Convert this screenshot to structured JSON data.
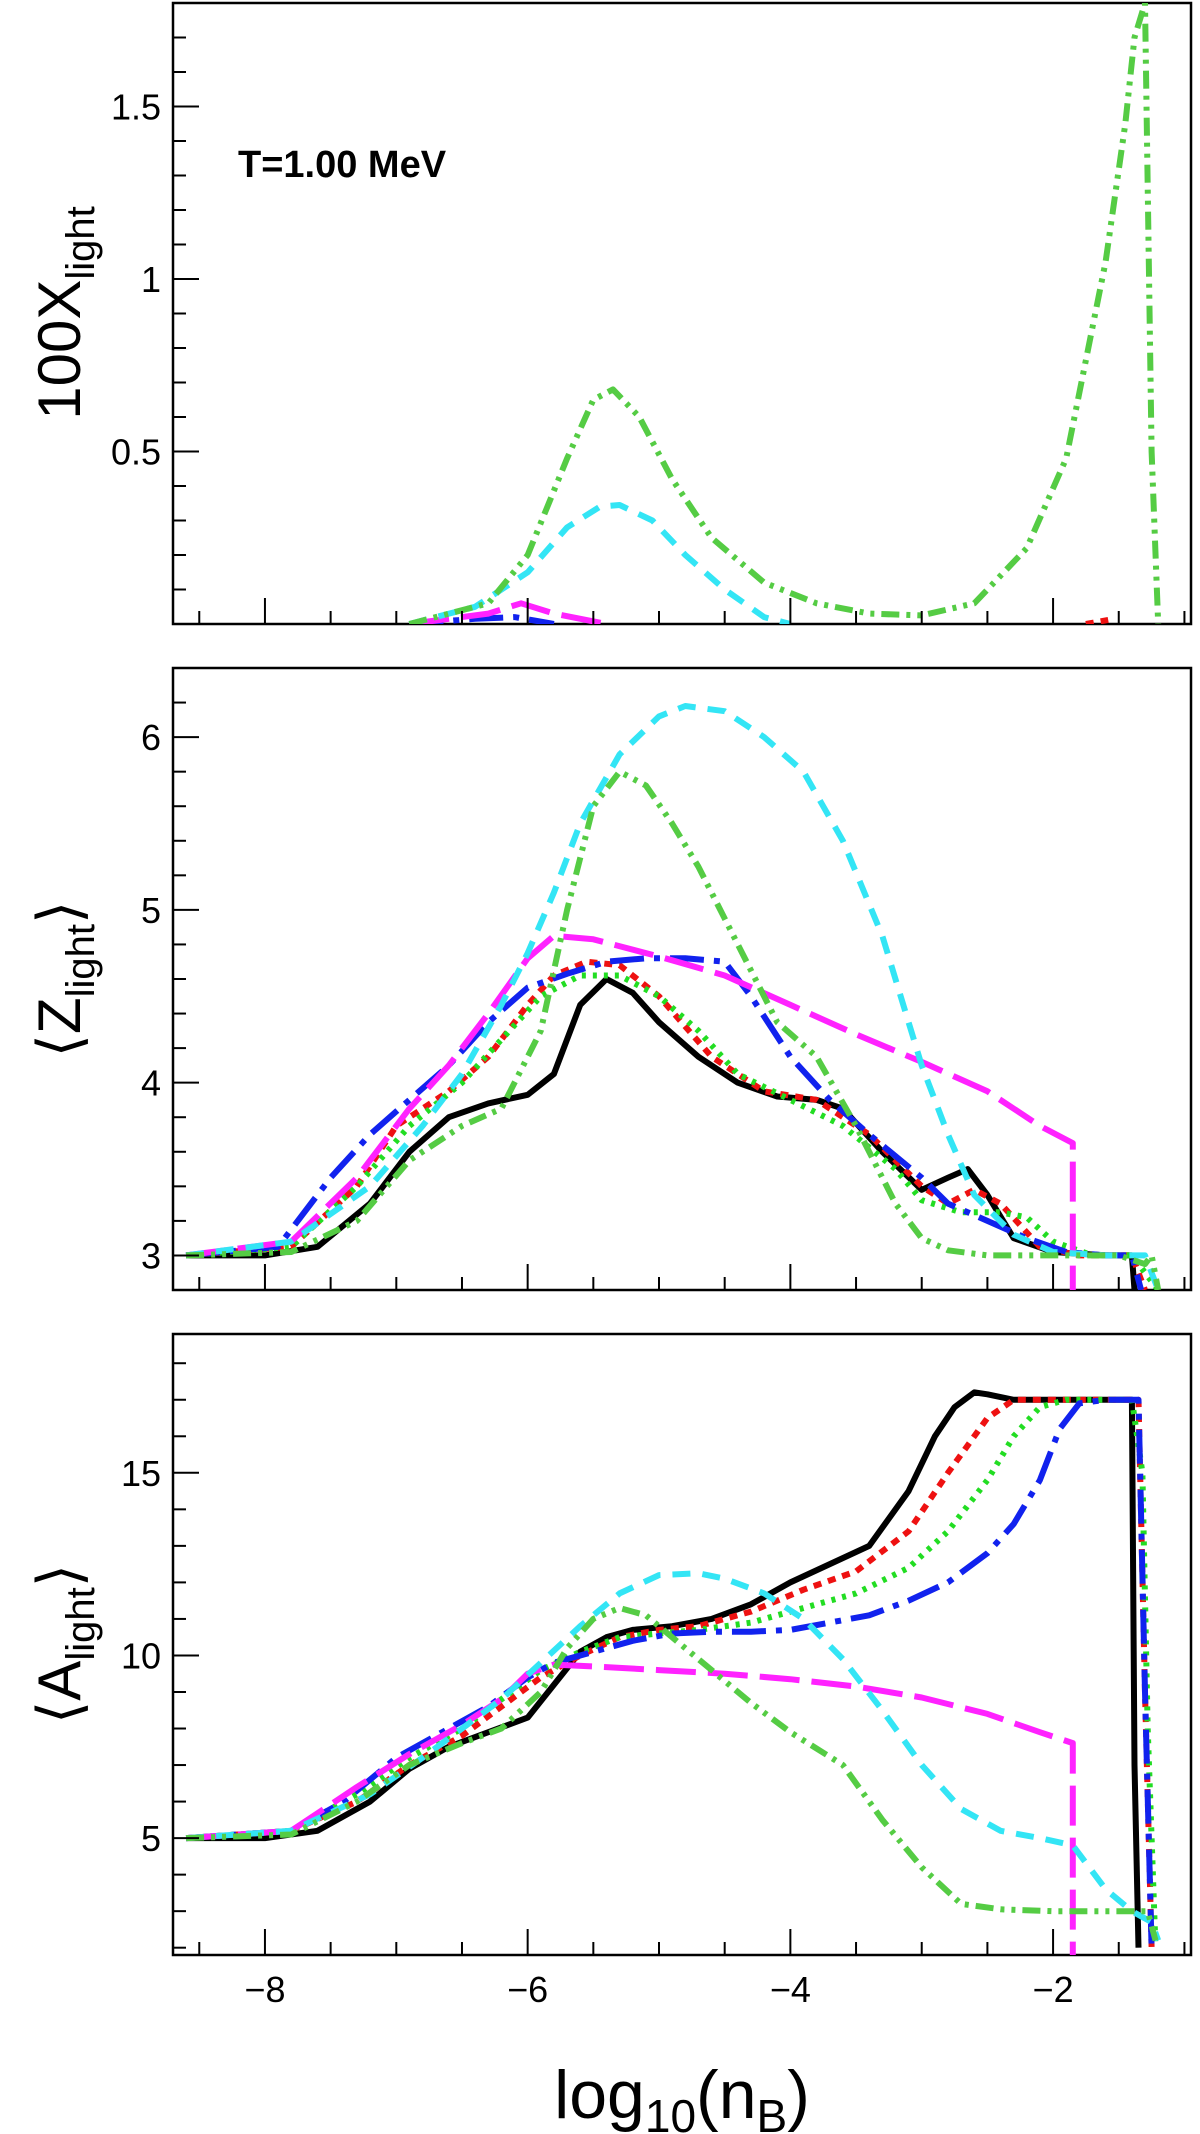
{
  "annotation": "T=1.00 MeV",
  "xaxis": {
    "label_main": "log",
    "label_sub": "10",
    "label_open": "(n",
    "label_var_sub": "B",
    "label_close": ")",
    "range": [
      -8.7,
      -0.95
    ],
    "major_ticks": [
      -8,
      -6,
      -4,
      -2
    ],
    "tick_labels": [
      "−8",
      "−6",
      "−4",
      "−2"
    ]
  },
  "colors": {
    "black": "#000000",
    "red": "#ee1111",
    "green": "#22dd22",
    "blue": "#1122ee",
    "magenta": "#ff22ff",
    "cyan": "#33e5f5",
    "lightgreen": "#55cc44"
  },
  "chart_data": [
    {
      "type": "line",
      "id": "X",
      "title": "T=1.00 MeV",
      "ylabel_main": "100X",
      "ylabel_sub": "light",
      "xlabel": "log10(nB)",
      "ylim": [
        0,
        1.8
      ],
      "yticks": [
        0.5,
        1,
        1.5
      ],
      "ytick_labels": [
        "0.5",
        "1",
        "1.5"
      ],
      "series": [
        {
          "name": "blue-dashdot",
          "color": "blue",
          "dash": "34,10,6,10",
          "width": 6,
          "x": [
            -6.9,
            -6.4,
            -6.1,
            -5.95,
            -5.8
          ],
          "y": [
            0.0,
            0.015,
            0.02,
            0.01,
            0.0
          ]
        },
        {
          "name": "magenta-longdash",
          "color": "magenta",
          "dash": "40,12",
          "width": 6,
          "x": [
            -6.9,
            -6.3,
            -6.05,
            -5.8,
            -5.4
          ],
          "y": [
            0.0,
            0.03,
            0.06,
            0.03,
            0.0
          ]
        },
        {
          "name": "cyan-dashed",
          "color": "cyan",
          "dash": "18,12",
          "width": 6,
          "x": [
            -6.9,
            -6.4,
            -6.0,
            -5.7,
            -5.45,
            -5.3,
            -5.05,
            -4.8,
            -4.5,
            -4.2,
            -4.0
          ],
          "y": [
            0.0,
            0.05,
            0.15,
            0.28,
            0.34,
            0.345,
            0.3,
            0.2,
            0.1,
            0.02,
            0.0
          ]
        },
        {
          "name": "green-dashdotdot",
          "color": "lightgreen",
          "dash": "18,7,4,7,4,7",
          "width": 6,
          "x": [
            -6.9,
            -6.3,
            -6.0,
            -5.7,
            -5.5,
            -5.35,
            -5.15,
            -4.9,
            -4.6,
            -4.2,
            -3.8,
            -3.4,
            -3.0,
            -2.6,
            -2.2,
            -1.9,
            -1.6,
            -1.45,
            -1.38,
            -1.3,
            -1.25,
            -1.2
          ],
          "y": [
            0.0,
            0.06,
            0.2,
            0.48,
            0.65,
            0.68,
            0.6,
            0.42,
            0.25,
            0.12,
            0.06,
            0.03,
            0.025,
            0.06,
            0.22,
            0.48,
            1.05,
            1.45,
            1.7,
            1.8,
            0.5,
            0.0
          ]
        },
        {
          "name": "red-dotted",
          "color": "red",
          "dash": "8,7",
          "width": 6,
          "x": [
            -1.75,
            -1.58
          ],
          "y": [
            0.0,
            0.012
          ]
        }
      ]
    },
    {
      "type": "line",
      "id": "Z",
      "ylabel_main": "Z",
      "ylabel_sub": "light",
      "ylim": [
        2.8,
        6.4
      ],
      "yticks": [
        3,
        4,
        5,
        6
      ],
      "ytick_labels": [
        "3",
        "4",
        "5",
        "6"
      ],
      "series": [
        {
          "name": "black-solid",
          "color": "black",
          "dash": "",
          "width": 6,
          "x": [
            -8.6,
            -8.0,
            -7.6,
            -7.2,
            -6.9,
            -6.6,
            -6.3,
            -6.0,
            -5.8,
            -5.6,
            -5.4,
            -5.2,
            -5.0,
            -4.7,
            -4.4,
            -4.1,
            -3.8,
            -3.6,
            -3.3,
            -3.0,
            -2.8,
            -2.65,
            -2.5,
            -2.3,
            -2.0,
            -1.6,
            -1.4,
            -1.38
          ],
          "y": [
            3.0,
            3.0,
            3.05,
            3.3,
            3.6,
            3.8,
            3.88,
            3.93,
            4.05,
            4.45,
            4.6,
            4.52,
            4.35,
            4.15,
            4.0,
            3.92,
            3.9,
            3.85,
            3.6,
            3.38,
            3.45,
            3.5,
            3.35,
            3.1,
            3.02,
            3.0,
            3.0,
            2.8
          ]
        },
        {
          "name": "red-dotted",
          "color": "red",
          "dash": "8,7",
          "width": 6,
          "x": [
            -8.6,
            -7.8,
            -7.3,
            -7.0,
            -6.6,
            -6.3,
            -6.0,
            -5.8,
            -5.55,
            -5.3,
            -5.0,
            -4.6,
            -4.2,
            -3.8,
            -3.4,
            -3.0,
            -2.8,
            -2.6,
            -2.4,
            -2.1,
            -1.8,
            -1.4,
            -1.3
          ],
          "y": [
            3.0,
            3.05,
            3.4,
            3.75,
            3.95,
            4.15,
            4.45,
            4.62,
            4.7,
            4.68,
            4.5,
            4.15,
            3.95,
            3.9,
            3.7,
            3.4,
            3.3,
            3.38,
            3.3,
            3.05,
            3.0,
            3.0,
            2.8
          ]
        },
        {
          "name": "green-dotted",
          "color": "green",
          "dash": "4,7",
          "width": 6,
          "x": [
            -8.6,
            -7.8,
            -7.3,
            -6.9,
            -6.5,
            -6.2,
            -5.9,
            -5.6,
            -5.3,
            -5.0,
            -4.7,
            -4.4,
            -4.0,
            -3.6,
            -3.2,
            -3.0,
            -2.7,
            -2.4,
            -2.2,
            -2.0,
            -1.7,
            -1.4,
            -1.2
          ],
          "y": [
            3.0,
            3.05,
            3.4,
            3.75,
            4.0,
            4.25,
            4.5,
            4.62,
            4.62,
            4.5,
            4.3,
            4.05,
            3.9,
            3.75,
            3.5,
            3.32,
            3.25,
            3.25,
            3.22,
            3.08,
            3.0,
            3.0,
            2.8
          ]
        },
        {
          "name": "blue-dashdot",
          "color": "blue",
          "dash": "34,10,6,10",
          "width": 6,
          "x": [
            -8.6,
            -7.9,
            -7.5,
            -7.2,
            -6.9,
            -6.6,
            -6.3,
            -6.0,
            -5.7,
            -5.4,
            -5.1,
            -4.8,
            -4.5,
            -4.3,
            -4.0,
            -3.7,
            -3.4,
            -3.0,
            -2.8,
            -2.5,
            -2.2,
            -1.9,
            -1.6,
            -1.4,
            -1.33
          ],
          "y": [
            3.0,
            3.05,
            3.45,
            3.7,
            3.9,
            4.1,
            4.35,
            4.55,
            4.63,
            4.7,
            4.72,
            4.72,
            4.7,
            4.5,
            4.15,
            3.9,
            3.7,
            3.45,
            3.3,
            3.2,
            3.1,
            3.02,
            3.0,
            3.0,
            2.8
          ]
        },
        {
          "name": "magenta-longdash",
          "color": "magenta",
          "dash": "40,12",
          "width": 6,
          "x": [
            -8.6,
            -7.8,
            -7.3,
            -6.9,
            -6.6,
            -6.3,
            -6.0,
            -5.8,
            -5.5,
            -5.0,
            -4.5,
            -4.0,
            -3.5,
            -3.0,
            -2.5,
            -2.1,
            -1.85,
            -1.85
          ],
          "y": [
            3.0,
            3.08,
            3.45,
            3.85,
            4.1,
            4.4,
            4.72,
            4.85,
            4.83,
            4.73,
            4.62,
            4.45,
            4.28,
            4.12,
            3.95,
            3.75,
            3.65,
            2.8
          ]
        },
        {
          "name": "cyan-dashed",
          "color": "cyan",
          "dash": "18,12",
          "width": 6,
          "x": [
            -8.6,
            -7.8,
            -7.2,
            -6.8,
            -6.5,
            -6.2,
            -6.0,
            -5.8,
            -5.6,
            -5.3,
            -5.0,
            -4.8,
            -4.5,
            -4.2,
            -3.9,
            -3.6,
            -3.3,
            -3.0,
            -2.8,
            -2.6,
            -2.3,
            -2.0,
            -1.6,
            -1.3,
            -1.2
          ],
          "y": [
            3.0,
            3.08,
            3.4,
            3.75,
            4.05,
            4.45,
            4.75,
            5.1,
            5.5,
            5.9,
            6.12,
            6.18,
            6.15,
            6.0,
            5.8,
            5.4,
            4.85,
            4.1,
            3.7,
            3.35,
            3.12,
            3.02,
            3.0,
            3.0,
            2.8
          ]
        },
        {
          "name": "green-dashdotdot",
          "color": "lightgreen",
          "dash": "18,7,4,7,4,7",
          "width": 6,
          "x": [
            -8.6,
            -7.8,
            -7.3,
            -6.9,
            -6.5,
            -6.2,
            -5.9,
            -5.7,
            -5.5,
            -5.3,
            -5.1,
            -4.9,
            -4.7,
            -4.4,
            -4.1,
            -3.8,
            -3.5,
            -3.2,
            -3.0,
            -2.8,
            -2.5,
            -2.2,
            -2.0,
            -1.8,
            -1.5,
            -1.3,
            -1.25,
            -1.2
          ],
          "y": [
            3.0,
            3.02,
            3.2,
            3.55,
            3.75,
            3.85,
            4.3,
            5.0,
            5.6,
            5.8,
            5.72,
            5.5,
            5.25,
            4.8,
            4.35,
            4.15,
            3.75,
            3.3,
            3.1,
            3.03,
            3.0,
            3.0,
            3.0,
            3.0,
            3.0,
            2.95,
            3.0,
            2.8
          ]
        }
      ]
    },
    {
      "type": "line",
      "id": "A",
      "ylabel_main": "A",
      "ylabel_sub": "light",
      "ylim": [
        1.8,
        18.8
      ],
      "yticks": [
        5,
        10,
        15
      ],
      "ytick_labels": [
        "5",
        "10",
        "15"
      ],
      "series": [
        {
          "name": "black-solid",
          "color": "black",
          "dash": "",
          "width": 6,
          "x": [
            -8.6,
            -8.0,
            -7.6,
            -7.2,
            -6.9,
            -6.6,
            -6.3,
            -6.0,
            -5.8,
            -5.6,
            -5.4,
            -5.2,
            -4.9,
            -4.6,
            -4.3,
            -4.0,
            -3.7,
            -3.4,
            -3.1,
            -2.9,
            -2.75,
            -2.6,
            -2.5,
            -2.3,
            -2.0,
            -1.7,
            -1.4,
            -1.38,
            -1.35
          ],
          "y": [
            5.0,
            5.0,
            5.2,
            6.0,
            6.9,
            7.5,
            7.9,
            8.3,
            9.2,
            10.1,
            10.5,
            10.7,
            10.8,
            11.0,
            11.4,
            12.0,
            12.5,
            13.0,
            14.5,
            16.0,
            16.8,
            17.2,
            17.15,
            17.0,
            17.0,
            17.0,
            17.0,
            7.0,
            2.0
          ]
        },
        {
          "name": "red-dotted",
          "color": "red",
          "dash": "8,7",
          "width": 6,
          "x": [
            -8.6,
            -7.8,
            -7.3,
            -6.9,
            -6.5,
            -6.2,
            -5.9,
            -5.6,
            -5.3,
            -5.0,
            -4.7,
            -4.3,
            -3.9,
            -3.5,
            -3.1,
            -2.8,
            -2.5,
            -2.3,
            -2.0,
            -1.6,
            -1.35,
            -1.3,
            -1.25
          ],
          "y": [
            5.0,
            5.2,
            6.0,
            7.0,
            7.8,
            8.6,
            9.4,
            10.0,
            10.5,
            10.7,
            10.8,
            11.2,
            11.8,
            12.3,
            13.4,
            15.0,
            16.5,
            17.0,
            17.0,
            17.0,
            17.0,
            9.0,
            2.0
          ]
        },
        {
          "name": "green-dotted",
          "color": "green",
          "dash": "4,7",
          "width": 6,
          "x": [
            -8.6,
            -7.8,
            -7.3,
            -6.9,
            -6.5,
            -6.2,
            -5.9,
            -5.6,
            -5.3,
            -5.0,
            -4.7,
            -4.3,
            -3.9,
            -3.5,
            -3.1,
            -2.8,
            -2.5,
            -2.3,
            -2.1,
            -1.9,
            -1.6,
            -1.4,
            -1.32,
            -1.28,
            -1.22
          ],
          "y": [
            5.0,
            5.2,
            6.2,
            7.2,
            8.0,
            8.8,
            9.6,
            10.1,
            10.5,
            10.6,
            10.7,
            10.9,
            11.3,
            11.7,
            12.4,
            13.4,
            14.8,
            16.0,
            16.8,
            17.0,
            17.0,
            17.0,
            15.0,
            8.0,
            2.0
          ]
        },
        {
          "name": "blue-dashdot",
          "color": "blue",
          "dash": "34,10,6,10",
          "width": 6,
          "x": [
            -8.6,
            -7.8,
            -7.4,
            -7.0,
            -6.6,
            -6.3,
            -6.0,
            -5.8,
            -5.5,
            -5.2,
            -4.9,
            -4.6,
            -4.3,
            -4.0,
            -3.7,
            -3.4,
            -3.1,
            -2.8,
            -2.5,
            -2.3,
            -2.1,
            -1.95,
            -1.8,
            -1.6,
            -1.4,
            -1.35,
            -1.3,
            -1.25
          ],
          "y": [
            5.0,
            5.2,
            6.0,
            7.2,
            8.0,
            8.6,
            9.4,
            9.8,
            10.1,
            10.4,
            10.6,
            10.65,
            10.65,
            10.7,
            10.9,
            11.1,
            11.5,
            12.0,
            12.8,
            13.6,
            14.8,
            16.2,
            16.9,
            17.0,
            17.0,
            17.0,
            9.0,
            2.0
          ]
        },
        {
          "name": "magenta-longdash",
          "color": "magenta",
          "dash": "40,12",
          "width": 6,
          "x": [
            -8.6,
            -7.8,
            -7.3,
            -6.9,
            -6.5,
            -6.2,
            -6.0,
            -5.8,
            -5.5,
            -5.0,
            -4.5,
            -4.0,
            -3.5,
            -3.0,
            -2.5,
            -2.1,
            -1.85,
            -1.85
          ],
          "y": [
            5.0,
            5.2,
            6.4,
            7.3,
            8.1,
            8.8,
            9.5,
            9.75,
            9.7,
            9.6,
            9.5,
            9.35,
            9.15,
            8.85,
            8.4,
            7.9,
            7.6,
            1.8
          ]
        },
        {
          "name": "cyan-dashed",
          "color": "cyan",
          "dash": "18,12",
          "width": 6,
          "x": [
            -8.6,
            -7.8,
            -7.2,
            -6.8,
            -6.5,
            -6.2,
            -5.9,
            -5.6,
            -5.3,
            -5.0,
            -4.7,
            -4.5,
            -4.2,
            -3.9,
            -3.6,
            -3.3,
            -3.0,
            -2.7,
            -2.4,
            -2.1,
            -1.85,
            -1.6,
            -1.4,
            -1.25,
            -1.2
          ],
          "y": [
            5.0,
            5.2,
            6.2,
            7.2,
            8.0,
            8.8,
            9.8,
            10.8,
            11.7,
            12.2,
            12.25,
            12.1,
            11.7,
            11.0,
            9.9,
            8.5,
            7.0,
            5.8,
            5.2,
            5.0,
            4.8,
            3.6,
            3.0,
            2.7,
            2.2
          ]
        },
        {
          "name": "green-dashdotdot",
          "color": "lightgreen",
          "dash": "18,7,4,7,4,7",
          "width": 6,
          "x": [
            -8.6,
            -7.8,
            -7.3,
            -6.9,
            -6.5,
            -6.2,
            -5.9,
            -5.7,
            -5.5,
            -5.3,
            -5.1,
            -4.9,
            -4.6,
            -4.3,
            -4.0,
            -3.6,
            -3.3,
            -3.0,
            -2.7,
            -2.4,
            -2.0,
            -1.7,
            -1.4,
            -1.28,
            -1.22
          ],
          "y": [
            5.0,
            5.1,
            6.0,
            7.0,
            7.6,
            8.0,
            9.0,
            10.2,
            11.0,
            11.3,
            11.1,
            10.5,
            9.6,
            8.7,
            7.9,
            7.0,
            5.5,
            4.2,
            3.2,
            3.05,
            3.0,
            3.0,
            3.0,
            3.0,
            2.2
          ]
        }
      ]
    }
  ]
}
